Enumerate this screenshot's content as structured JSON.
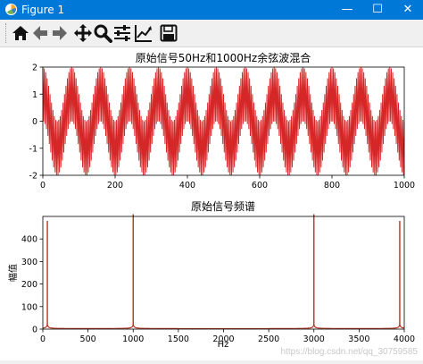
{
  "window": {
    "title": "Figure 1",
    "minimize_glyph": "—",
    "maximize_glyph": "☐",
    "close_glyph": "✕"
  },
  "toolbar": {
    "tools": [
      "home-icon",
      "back-arrow-icon",
      "forward-arrow-icon",
      "pan-move-icon",
      "zoom-magnifier-icon",
      "subplots-config-icon",
      "edit-axis-curve-icon",
      "save-disk-icon"
    ]
  },
  "watermark": "https://blog.csdn.net/qq_30759585",
  "chart_data": [
    {
      "type": "line",
      "title": "原始信号50Hz和1000Hz余弦波混合",
      "xlim": [
        0,
        1000
      ],
      "ylim": [
        -2,
        2
      ],
      "xticks": [
        0,
        200,
        400,
        600,
        800,
        1000
      ],
      "yticks": [
        -2,
        -1,
        0,
        1,
        2
      ],
      "color": "#d62728",
      "signal": {
        "components": [
          {
            "freq": 50,
            "amp": 1
          },
          {
            "freq": 1000,
            "amp": 1
          }
        ],
        "fs": 4000
      }
    },
    {
      "type": "line",
      "title": "原始信号频谱",
      "xlabel": "Hz",
      "ylabel": "幅值",
      "xlim": [
        0,
        4000
      ],
      "ylim": [
        0,
        500
      ],
      "xticks": [
        0,
        500,
        1000,
        1500,
        2000,
        2500,
        3000,
        3500,
        4000
      ],
      "yticks": [
        0,
        100,
        200,
        300,
        400
      ],
      "color": "#b5341c",
      "peaks": [
        {
          "x": 50,
          "y": 480
        },
        {
          "x": 1000,
          "y": 510
        },
        {
          "x": 3000,
          "y": 510
        },
        {
          "x": 3950,
          "y": 480
        }
      ]
    }
  ]
}
